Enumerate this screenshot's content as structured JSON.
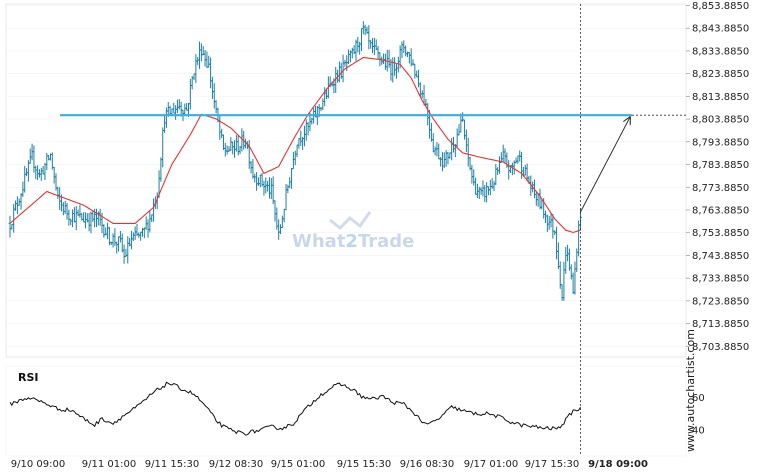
{
  "chart_data": [
    {
      "type": "candlestick",
      "title": "",
      "xlabel": "",
      "ylabel": "",
      "ylim": [
        8698.885,
        8855.885
      ],
      "y_ticks": [
        "8,853.8850",
        "8,843.8850",
        "8,833.8850",
        "8,823.8850",
        "8,813.8850",
        "8,803.8850",
        "8,793.8850",
        "8,783.8850",
        "8,773.8850",
        "8,763.8850",
        "8,753.8850",
        "8,743.8850",
        "8,733.8850",
        "8,723.8850",
        "8,713.8850",
        "8,703.8850"
      ],
      "y_tick_values": [
        8853.885,
        8843.885,
        8833.885,
        8823.885,
        8813.885,
        8803.885,
        8793.885,
        8783.885,
        8773.885,
        8763.885,
        8753.885,
        8743.885,
        8733.885,
        8723.885,
        8713.885,
        8703.885
      ],
      "x_ticks": [
        "9/10 09:00",
        "9/11 01:00",
        "9/11 15:30",
        "9/12 08:30",
        "9/15 01:00",
        "9/15 15:30",
        "9/16 08:30",
        "9/17 01:00",
        "9/17 15:30",
        "9/18 09:00"
      ],
      "resistance_level": 8805.6,
      "moving_average_color": "#e8332f",
      "bar_color": "#1b7fa5",
      "level_color": "#35aee6",
      "keypoints": [
        [
          0,
          8758
        ],
        [
          6,
          8772
        ],
        [
          12,
          8787
        ],
        [
          16,
          8779
        ],
        [
          22,
          8788
        ],
        [
          26,
          8768
        ],
        [
          32,
          8762
        ],
        [
          40,
          8760
        ],
        [
          48,
          8760
        ],
        [
          54,
          8752
        ],
        [
          60,
          8749
        ],
        [
          62,
          8743
        ],
        [
          66,
          8751
        ],
        [
          72,
          8753
        ],
        [
          76,
          8760
        ],
        [
          80,
          8772
        ],
        [
          84,
          8805
        ],
        [
          92,
          8810
        ],
        [
          96,
          8808
        ],
        [
          100,
          8826
        ],
        [
          104,
          8835
        ],
        [
          108,
          8827
        ],
        [
          112,
          8806
        ],
        [
          116,
          8790
        ],
        [
          124,
          8792
        ],
        [
          128,
          8795
        ],
        [
          132,
          8780
        ],
        [
          138,
          8775
        ],
        [
          142,
          8772
        ],
        [
          146,
          8752
        ],
        [
          150,
          8770
        ],
        [
          156,
          8795
        ],
        [
          162,
          8800
        ],
        [
          166,
          8806
        ],
        [
          172,
          8815
        ],
        [
          176,
          8822
        ],
        [
          180,
          8825
        ],
        [
          186,
          8832
        ],
        [
          192,
          8843
        ],
        [
          196,
          8835
        ],
        [
          202,
          8830
        ],
        [
          208,
          8826
        ],
        [
          214,
          8836
        ],
        [
          218,
          8830
        ],
        [
          222,
          8820
        ],
        [
          226,
          8810
        ],
        [
          230,
          8792
        ],
        [
          236,
          8785
        ],
        [
          242,
          8795
        ],
        [
          246,
          8803
        ],
        [
          248,
          8790
        ],
        [
          252,
          8775
        ],
        [
          256,
          8770
        ],
        [
          262,
          8775
        ],
        [
          268,
          8787
        ],
        [
          272,
          8781
        ],
        [
          276,
          8788
        ],
        [
          280,
          8780
        ],
        [
          284,
          8772
        ],
        [
          288,
          8767
        ],
        [
          292,
          8760
        ],
        [
          296,
          8755
        ],
        [
          298,
          8741
        ],
        [
          300,
          8726
        ],
        [
          302,
          8746
        ],
        [
          304,
          8740
        ],
        [
          306,
          8727
        ],
        [
          308,
          8748
        ],
        [
          310,
          8763
        ]
      ],
      "moving_average_keypoints": [
        [
          0,
          8758
        ],
        [
          20,
          8772
        ],
        [
          40,
          8766
        ],
        [
          56,
          8758
        ],
        [
          68,
          8758
        ],
        [
          78,
          8765
        ],
        [
          88,
          8784
        ],
        [
          98,
          8797
        ],
        [
          104,
          8806
        ],
        [
          112,
          8804
        ],
        [
          120,
          8800
        ],
        [
          130,
          8792
        ],
        [
          138,
          8780
        ],
        [
          146,
          8783
        ],
        [
          154,
          8795
        ],
        [
          162,
          8806
        ],
        [
          172,
          8817
        ],
        [
          182,
          8826
        ],
        [
          192,
          8831
        ],
        [
          202,
          8830
        ],
        [
          212,
          8828
        ],
        [
          218,
          8822
        ],
        [
          224,
          8812
        ],
        [
          230,
          8804
        ],
        [
          238,
          8795
        ],
        [
          246,
          8789
        ],
        [
          256,
          8787
        ],
        [
          268,
          8785
        ],
        [
          278,
          8780
        ],
        [
          288,
          8770
        ],
        [
          296,
          8760
        ],
        [
          302,
          8755
        ],
        [
          306,
          8754
        ],
        [
          310,
          8755
        ]
      ],
      "forecast_arrow": {
        "from": [
          310,
          8763
        ],
        "to": [
          338,
          8805.6
        ]
      },
      "last_index": 310
    },
    {
      "type": "line",
      "title": "RSI",
      "ylim": [
        35,
        75
      ],
      "y_ticks": [
        "60",
        "40"
      ],
      "y_tick_values": [
        60,
        40
      ],
      "line_color": "#111111",
      "keypoints": [
        [
          0,
          56
        ],
        [
          10,
          60
        ],
        [
          18,
          57
        ],
        [
          26,
          53
        ],
        [
          34,
          52
        ],
        [
          40,
          47
        ],
        [
          46,
          43
        ],
        [
          50,
          47
        ],
        [
          56,
          44
        ],
        [
          62,
          49
        ],
        [
          70,
          55
        ],
        [
          78,
          63
        ],
        [
          86,
          69
        ],
        [
          90,
          67
        ],
        [
          96,
          64
        ],
        [
          100,
          62
        ],
        [
          106,
          55
        ],
        [
          112,
          46
        ],
        [
          116,
          42
        ],
        [
          122,
          39
        ],
        [
          128,
          38
        ],
        [
          136,
          40
        ],
        [
          142,
          42
        ],
        [
          148,
          41
        ],
        [
          154,
          44
        ],
        [
          160,
          52
        ],
        [
          168,
          61
        ],
        [
          176,
          67
        ],
        [
          180,
          68
        ],
        [
          186,
          65
        ],
        [
          192,
          60
        ],
        [
          198,
          59
        ],
        [
          202,
          61
        ],
        [
          208,
          57
        ],
        [
          214,
          56
        ],
        [
          220,
          50
        ],
        [
          226,
          43
        ],
        [
          232,
          46
        ],
        [
          240,
          54
        ],
        [
          246,
          52
        ],
        [
          252,
          50
        ],
        [
          260,
          50
        ],
        [
          266,
          48
        ],
        [
          272,
          45
        ],
        [
          278,
          43
        ],
        [
          284,
          42
        ],
        [
          292,
          41
        ],
        [
          298,
          41
        ],
        [
          302,
          46
        ],
        [
          306,
          52
        ],
        [
          310,
          53
        ]
      ]
    }
  ],
  "watermark": {
    "prefix": "What",
    "digit": "2",
    "suffix": "Trade"
  },
  "brand_vertical": "www.autochartist.com",
  "price_labels_last": "9/18 09:00"
}
